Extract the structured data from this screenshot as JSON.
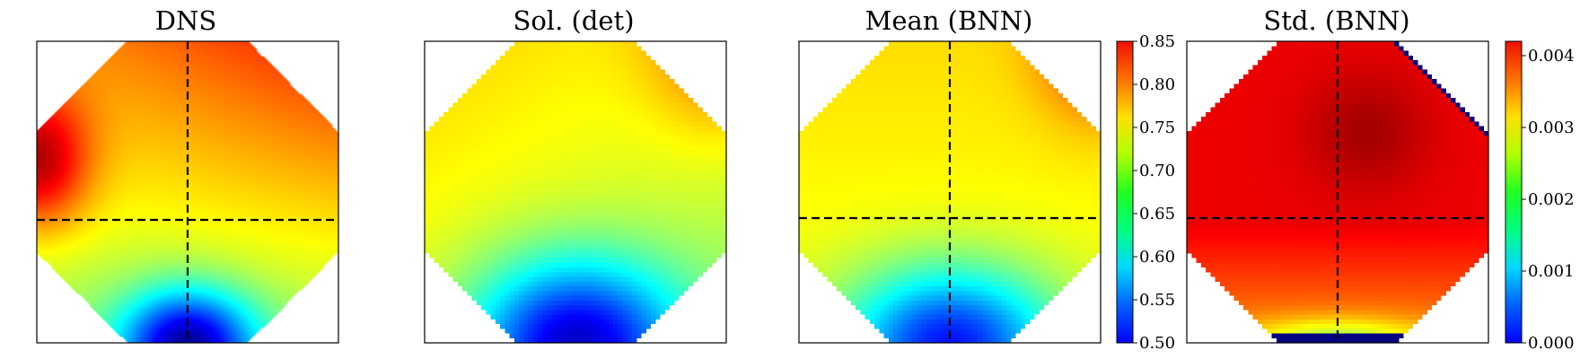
{
  "chart_data": [
    {
      "type": "heatmap",
      "title": "DNS",
      "field": "dns",
      "grid": false,
      "xticks": [],
      "yticks": [],
      "guide_lines": "dashed crosshair through panel center",
      "shared_colorbar": true
    },
    {
      "type": "heatmap",
      "title": "Sol. (det)",
      "field": "det",
      "grid": false,
      "xticks": [],
      "yticks": [],
      "guide_lines": "none",
      "shared_colorbar": true
    },
    {
      "type": "heatmap",
      "title": "Mean (BNN)",
      "field": "mean",
      "grid": false,
      "xticks": [],
      "yticks": [],
      "guide_lines": "dashed crosshair through panel center",
      "colorbar": {
        "colormap": "jet",
        "range": [
          0.5,
          0.85
        ],
        "ticks": [
          "0.50",
          "0.55",
          "0.60",
          "0.65",
          "0.70",
          "0.75",
          "0.80",
          "0.85"
        ],
        "tick_values": [
          0.5,
          0.55,
          0.6,
          0.65,
          0.7,
          0.75,
          0.8,
          0.85
        ],
        "placement": "right"
      }
    },
    {
      "type": "heatmap",
      "title": "Std. (BNN)",
      "field": "std",
      "grid": false,
      "xticks": [],
      "yticks": [],
      "guide_lines": "dashed crosshair through panel center",
      "colorbar": {
        "colormap": "jet",
        "range": [
          0.0,
          0.0042
        ],
        "ticks": [
          "0.000",
          "0.001",
          "0.002",
          "0.003",
          "0.004"
        ],
        "tick_values": [
          0.0,
          0.001,
          0.002,
          0.003,
          0.004
        ],
        "placement": "right"
      }
    }
  ],
  "colors": {
    "frame": "#000000",
    "guide_line": "#000000",
    "background": "#ffffff"
  }
}
